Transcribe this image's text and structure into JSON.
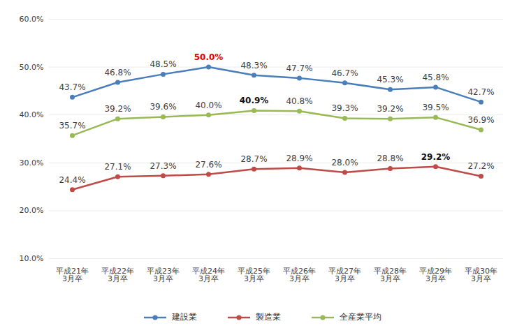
{
  "chart_data": {
    "type": "line",
    "categories": [
      "平成21年\n3月卒",
      "平成22年\n3月卒",
      "平成23年\n3月卒",
      "平成24年\n3月卒",
      "平成25年\n3月卒",
      "平成26年\n3月卒",
      "平成27年\n3月卒",
      "平成28年\n3月卒",
      "平成29年\n3月卒",
      "平成30年\n3月卒"
    ],
    "series": [
      {
        "name": "建設業",
        "color": "#4a7ebb",
        "marker": "circle",
        "values": [
          43.7,
          46.8,
          48.5,
          50.0,
          48.3,
          47.7,
          46.7,
          45.3,
          45.8,
          42.7
        ],
        "value_labels": [
          "43.7%",
          "46.8%",
          "48.5%",
          "50.0%",
          "48.3%",
          "47.7%",
          "46.7%",
          "45.3%",
          "45.8%",
          "42.7%"
        ]
      },
      {
        "name": "製造業",
        "color": "#be4b48",
        "marker": "circle",
        "values": [
          24.4,
          27.1,
          27.3,
          27.6,
          28.7,
          28.9,
          28.0,
          28.8,
          29.2,
          27.2
        ],
        "value_labels": [
          "24.4%",
          "27.1%",
          "27.3%",
          "27.6%",
          "28.7%",
          "28.9%",
          "28.0%",
          "28.8%",
          "29.2%",
          "27.2%"
        ]
      },
      {
        "name": "全産業平均",
        "color": "#98b954",
        "marker": "circle",
        "values": [
          35.7,
          39.2,
          39.6,
          40.0,
          40.9,
          40.8,
          39.3,
          39.2,
          39.5,
          36.9
        ],
        "value_labels": [
          "35.7%",
          "39.2%",
          "39.6%",
          "40.0%",
          "40.9%",
          "40.8%",
          "39.3%",
          "39.2%",
          "39.5%",
          "36.9%"
        ]
      }
    ],
    "ylim": [
      10,
      60
    ],
    "yticks": [
      {
        "value": 10,
        "label": "10.0%"
      },
      {
        "value": 20,
        "label": "20.0%"
      },
      {
        "value": 30,
        "label": "30.0%"
      },
      {
        "value": 40,
        "label": "40.0%"
      },
      {
        "value": 50,
        "label": "50.0%"
      },
      {
        "value": 60,
        "label": "60.0%"
      }
    ],
    "grid": true,
    "data_labels": true,
    "legend": "bottom"
  }
}
